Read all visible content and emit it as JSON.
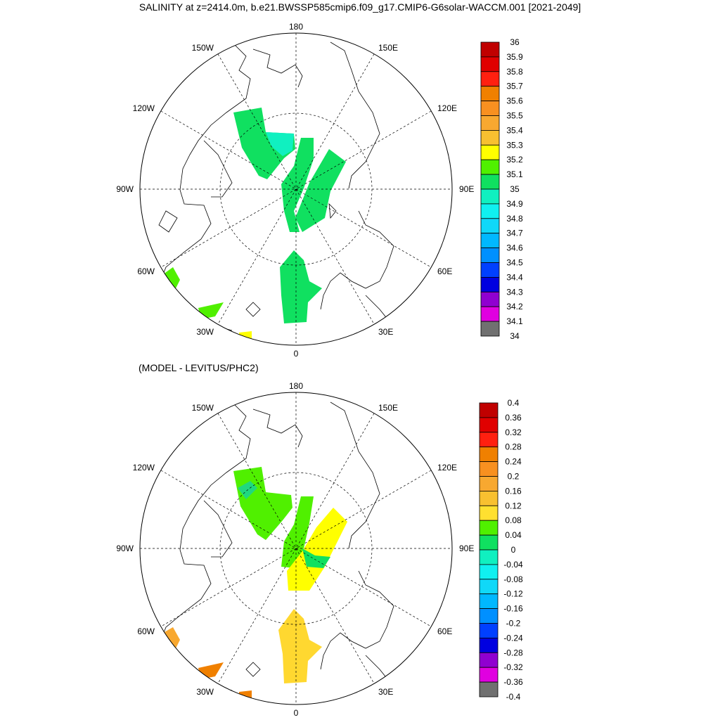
{
  "title": "SALINITY at z=2414.0m, b.e21.BWSSP585cmip6.f09_g17.CMIP6-G6solar-WACCM.001 [2021-2049]",
  "subtitle": "(MODEL - LEVITUS/PHC2)",
  "longitude_labels": {
    "top": "180",
    "bottom": "0",
    "left": "90W",
    "right": "90E",
    "upper_left_1": "150W",
    "upper_left_2": "120W",
    "upper_right_1": "150E",
    "upper_right_2": "120E",
    "lower_left_1": "60W",
    "lower_left_2": "30W",
    "lower_right_1": "60E",
    "lower_right_2": "30E"
  },
  "colorbar_top": {
    "labels": [
      "36",
      "35.9",
      "35.8",
      "35.7",
      "35.6",
      "35.5",
      "35.4",
      "35.3",
      "35.2",
      "35.1",
      "35",
      "34.9",
      "34.8",
      "34.7",
      "34.6",
      "34.5",
      "34.4",
      "34.3",
      "34.2",
      "34.1",
      "34"
    ],
    "colors": [
      "#c00000",
      "#e00000",
      "#ff2010",
      "#f08000",
      "#f89020",
      "#f8a830",
      "#f8c030",
      "#ffff00",
      "#50f000",
      "#10e060",
      "#10f0c0",
      "#10f0f0",
      "#10d8f8",
      "#00b8ff",
      "#0090ff",
      "#0040ff",
      "#0000e0",
      "#9000d0",
      "#e000e0",
      "#d0d0d0",
      "#707070"
    ]
  },
  "colorbar_bottom": {
    "labels": [
      "0.4",
      "0.36",
      "0.32",
      "0.28",
      "0.24",
      "0.2",
      "0.16",
      "0.12",
      "0.08",
      "0.04",
      "0",
      "-0.04",
      "-0.08",
      "-0.12",
      "-0.16",
      "-0.2",
      "-0.24",
      "-0.28",
      "-0.32",
      "-0.36",
      "-0.4"
    ],
    "colors": [
      "#c00000",
      "#e00000",
      "#ff2010",
      "#f08000",
      "#f89020",
      "#f8a830",
      "#f8c030",
      "#ffe030",
      "#50f000",
      "#10e060",
      "#10f0c0",
      "#10f0f0",
      "#10d8f8",
      "#00b8ff",
      "#0090ff",
      "#0040ff",
      "#0000e0",
      "#9000d0",
      "#e000e0",
      "#d0d0d0",
      "#707070"
    ]
  },
  "fill_colors": {
    "top_main": "#10e060",
    "top_cyan": "#10f0c0",
    "top_lime": "#50f000",
    "top_yellow": "#ffff00",
    "bot_lime": "#50f000",
    "bot_yellow": "#ffff00",
    "bot_gold": "#ffd830",
    "bot_orange": "#f8a830",
    "bot_dorange": "#f08000",
    "bot_green": "#10e060",
    "bot_teal": "#20d880"
  }
}
